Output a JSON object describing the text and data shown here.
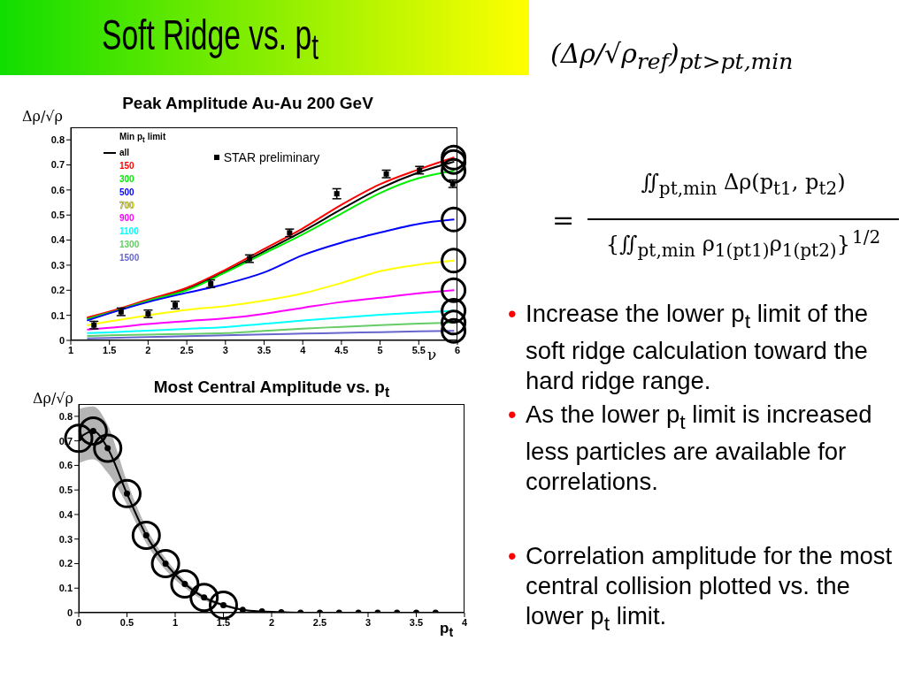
{
  "chart_data": [
    {
      "type": "line",
      "title": "Peak Amplitude Au-Au 200 GeV",
      "xlabel": "ν",
      "ylabel": "Δρ/√ρ",
      "legend_title": "Min p$_{t}$ limit",
      "legend": "top left",
      "x": [
        1.22,
        1.5,
        2,
        2.5,
        3,
        3.5,
        4,
        4.5,
        5,
        5.5,
        5.95
      ],
      "series": [
        {
          "name": "all",
          "color": "#000000",
          "values": [
            0.088,
            0.112,
            0.16,
            0.205,
            0.275,
            0.355,
            0.435,
            0.523,
            0.606,
            0.67,
            0.712
          ]
        },
        {
          "name": "150",
          "color": "#ff0000",
          "values": [
            0.092,
            0.115,
            0.163,
            0.21,
            0.282,
            0.365,
            0.447,
            0.541,
            0.623,
            0.682,
            0.729
          ]
        },
        {
          "name": "300",
          "color": "#00ee00",
          "values": [
            0.086,
            0.11,
            0.158,
            0.2,
            0.271,
            0.347,
            0.423,
            0.506,
            0.588,
            0.647,
            0.676
          ]
        },
        {
          "name": "500",
          "color": "#0000ff",
          "values": [
            0.08,
            0.108,
            0.153,
            0.19,
            0.225,
            0.271,
            0.34,
            0.39,
            0.43,
            0.465,
            0.482
          ]
        },
        {
          "name": "700",
          "color": "#ffff00",
          "values": [
            0.061,
            0.076,
            0.1,
            0.122,
            0.137,
            0.159,
            0.188,
            0.229,
            0.276,
            0.302,
            0.318
          ]
        },
        {
          "name": "900",
          "color": "#ff00ff",
          "values": [
            0.043,
            0.05,
            0.065,
            0.077,
            0.088,
            0.106,
            0.13,
            0.153,
            0.17,
            0.188,
            0.2
          ]
        },
        {
          "name": "1100",
          "color": "#00ffff",
          "values": [
            0.029,
            0.032,
            0.039,
            0.046,
            0.053,
            0.066,
            0.079,
            0.091,
            0.102,
            0.111,
            0.118
          ]
        },
        {
          "name": "1300",
          "color": "#66cc66",
          "values": [
            0.018,
            0.02,
            0.023,
            0.026,
            0.029,
            0.038,
            0.047,
            0.054,
            0.061,
            0.067,
            0.071
          ]
        },
        {
          "name": "1500",
          "color": "#6666cc",
          "values": [
            0.008,
            0.01,
            0.013,
            0.017,
            0.02,
            0.024,
            0.027,
            0.03,
            0.033,
            0.036,
            0.038
          ]
        },
        {
          "name": "STAR preliminary",
          "type": "scatter",
          "marker": "square",
          "color": "#000000",
          "x": [
            1.3,
            1.65,
            2,
            2.35,
            2.81,
            3.31,
            3.83,
            4.44,
            5.08,
            5.51,
            5.94
          ],
          "values": [
            0.061,
            0.114,
            0.106,
            0.141,
            0.226,
            0.326,
            0.429,
            0.585,
            0.664,
            0.679,
            0.625
          ],
          "errors": [
            0.015,
            0.015,
            0.015,
            0.015,
            0.015,
            0.015,
            0.015,
            0.02,
            0.015,
            0.015,
            0.015
          ]
        }
      ],
      "xlim": [
        1,
        6
      ],
      "xticks": [
        1,
        1.5,
        2,
        2.5,
        3,
        3.5,
        4,
        4.5,
        5,
        5.5,
        6
      ],
      "ylim": [
        0,
        0.85
      ],
      "yticks": [
        0,
        0.1,
        0.2,
        0.3,
        0.4,
        0.5,
        0.6,
        0.7,
        0.8
      ]
    },
    {
      "type": "line",
      "title": "Most Central Amplitude vs. p$_{t}$",
      "xlabel": "p$_{t}$",
      "ylabel": "Δρ/√ρ",
      "marker": "circle",
      "x": [
        0,
        0.15,
        0.3,
        0.5,
        0.7,
        0.9,
        1.1,
        1.3,
        1.5,
        1.7,
        1.9,
        2.1,
        2.3,
        2.5,
        2.7,
        2.9,
        3.1,
        3.3,
        3.5,
        3.7
      ],
      "series": [
        {
          "color": "#000000",
          "values": [
            0.71,
            0.74,
            0.67,
            0.485,
            0.315,
            0.2,
            0.117,
            0.062,
            0.031,
            0.012,
            0.005,
            0.002,
            0,
            0,
            0,
            0,
            0,
            0,
            0,
            0
          ],
          "lower": [
            0.61,
            0.625,
            0.57,
            0.44,
            0.283,
            0.174,
            0.102,
            0.05,
            0.025,
            0.009,
            0.004,
            0.002,
            0,
            0,
            0,
            0,
            0,
            0,
            0,
            0
          ],
          "upper": [
            0.83,
            0.84,
            0.765,
            0.535,
            0.348,
            0.222,
            0.131,
            0.071,
            0.037,
            0.016,
            0.006,
            0.002,
            0,
            0,
            0,
            0,
            0,
            0,
            0,
            0
          ]
        }
      ],
      "xlim": [
        0,
        4
      ],
      "xticks": [
        0,
        0.5,
        1,
        1.5,
        2,
        2.5,
        3,
        3.5,
        4
      ],
      "ylim": [
        0,
        0.85
      ],
      "yticks": [
        0,
        0.1,
        0.2,
        0.3,
        0.4,
        0.5,
        0.6,
        0.7,
        0.8
      ]
    },
    {
      "type": "other",
      "title": "Soft Ridge vs. p$_{t}$",
      "annotations": [
        "(Δρ/√ρ$_{ref}$)$_{pt>pt,min}$",
        "=",
        "∬$_{pt,min}$ Δρ(p$_{t1}$, p$_{t2}$)",
        "{∬$_{pt,min}$ ρ$_{1(pt1)}$ρ$_{1(pt2)}$}$^{1/2}$",
        "• Increase the lower p$_{t}$ limit of the soft ridge calculation toward the hard ridge range.",
        "• As the lower p$_{t}$ limit is increased less particles are available for correlations.",
        "• Correlation amplitude for the most central collision plotted vs. the lower p$_{t}$ limit."
      ]
    }
  ]
}
